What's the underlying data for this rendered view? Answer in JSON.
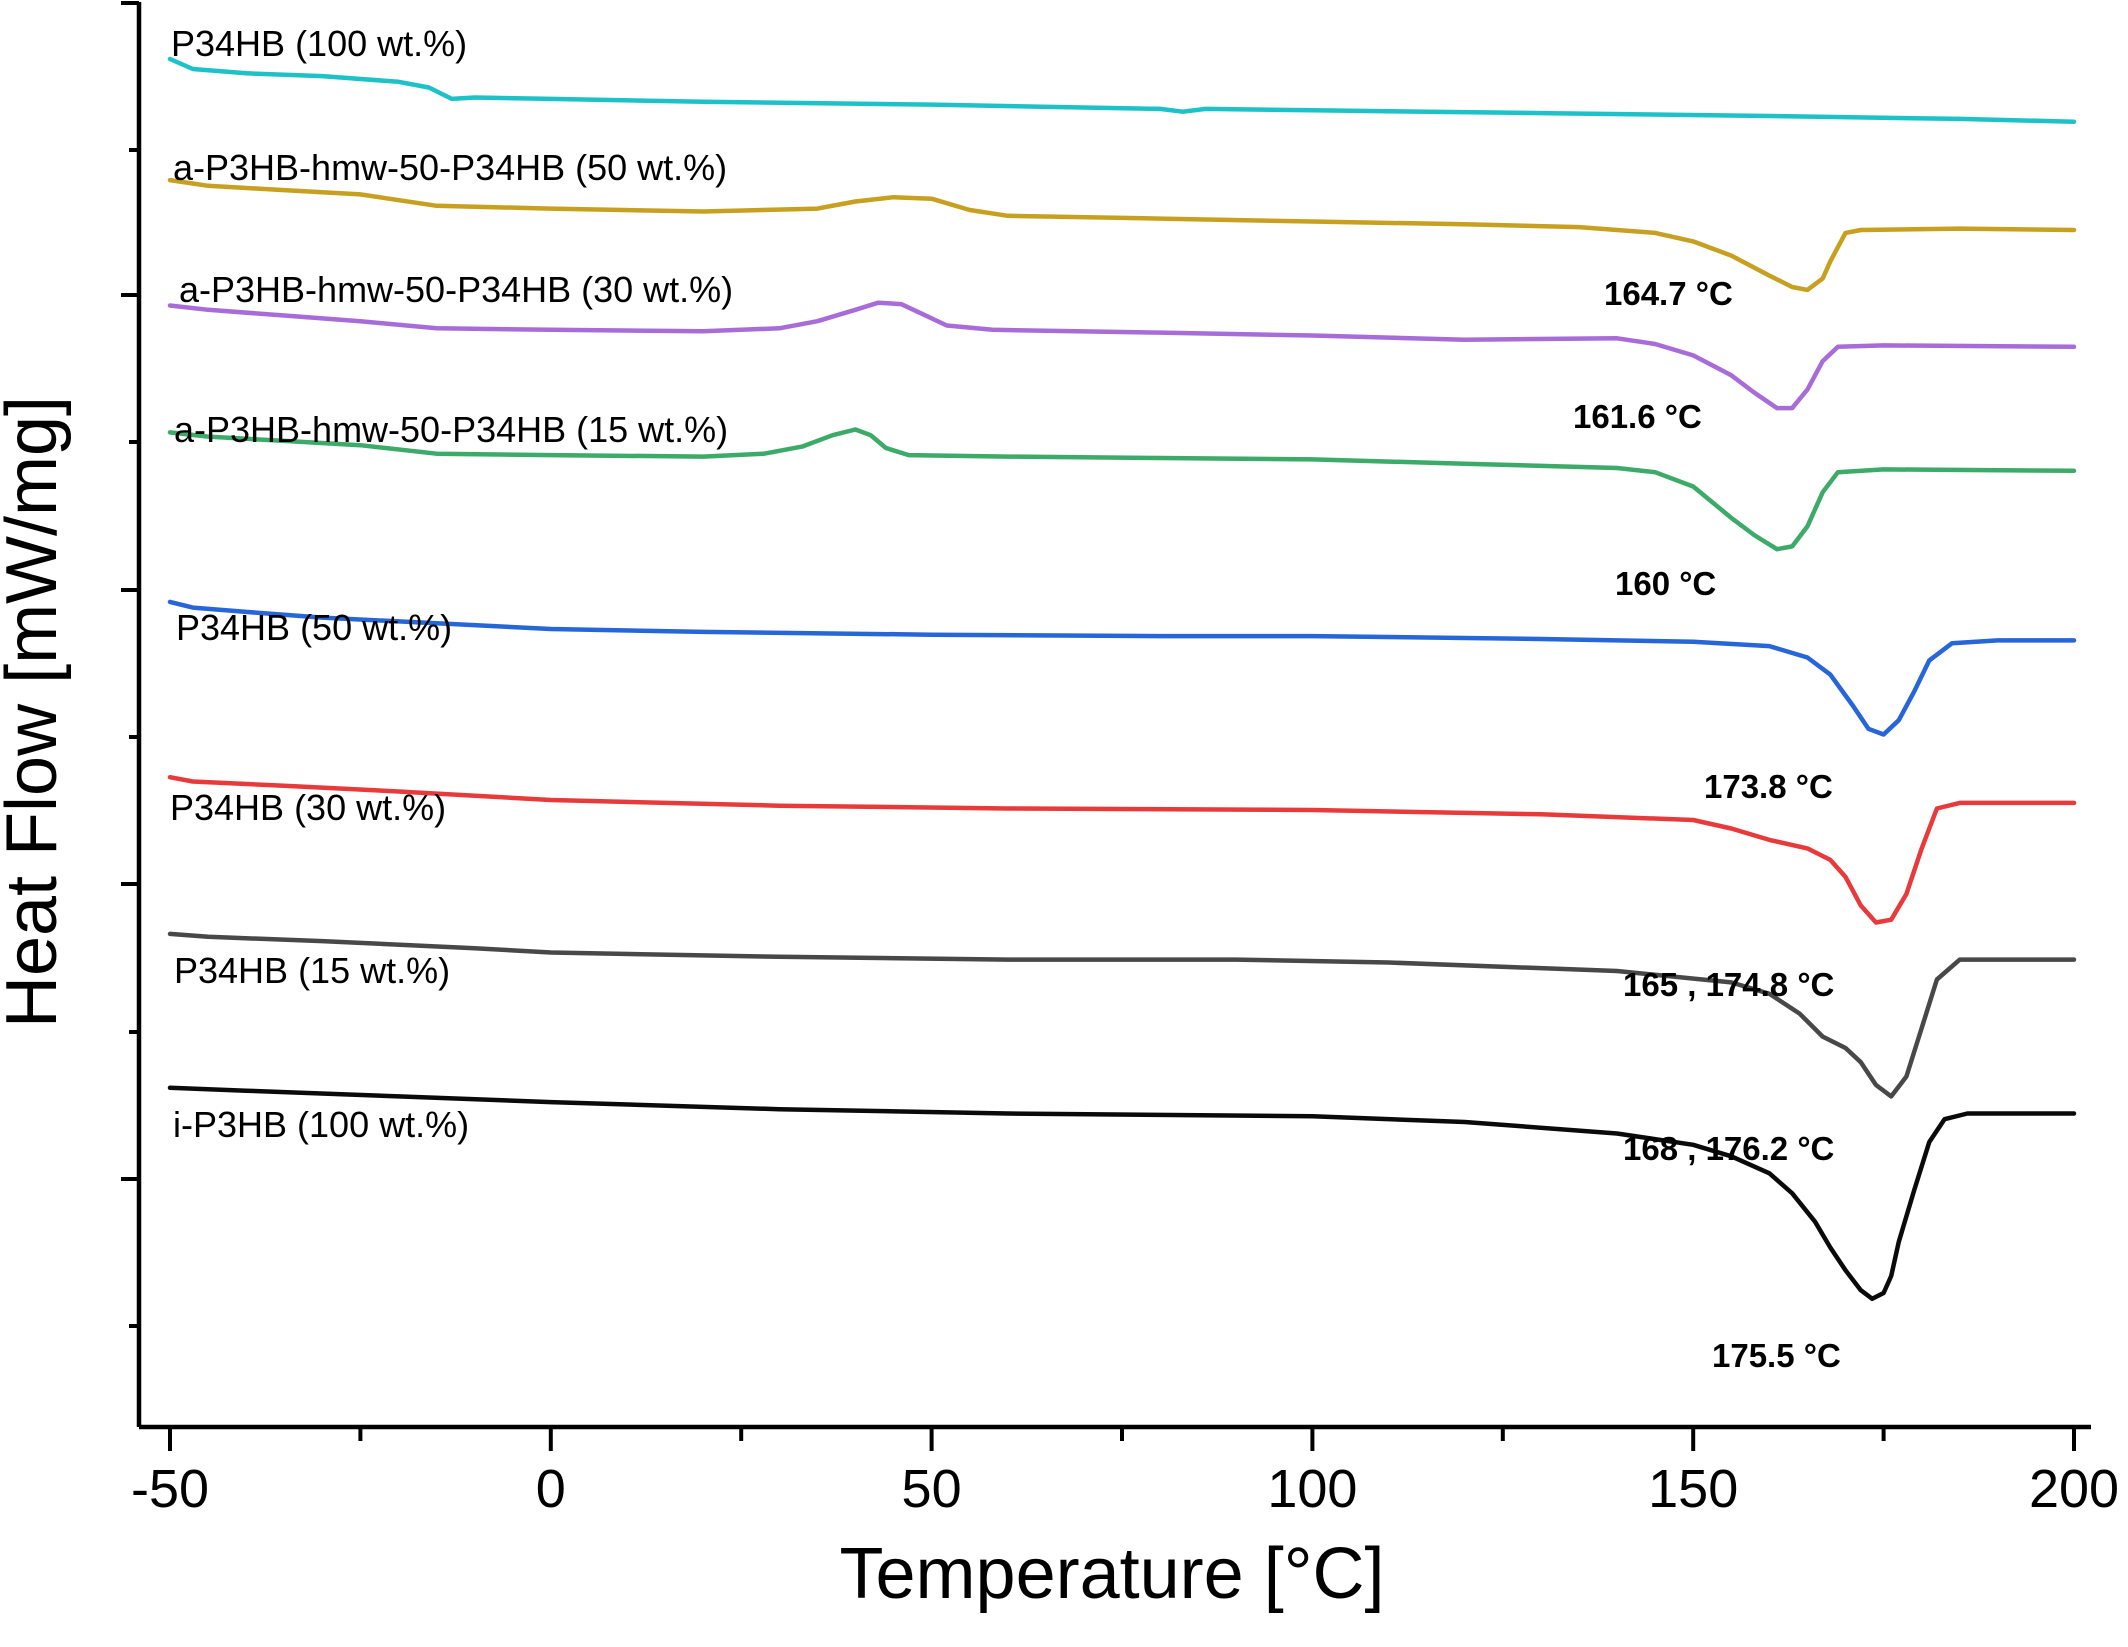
{
  "chart_data": {
    "type": "line",
    "title": "",
    "xlabel": "Temperature [°C]",
    "ylabel": "Heat Flow [mW/mg]",
    "xlim": [
      -50,
      200
    ],
    "ylim": [
      0,
      100
    ],
    "xticks": [
      "-50",
      "0",
      "50",
      "100",
      "150",
      "200"
    ],
    "grid": false,
    "legend": "none",
    "note_y": "curves vertically offset; y values are relative heat flow in arbitrary stacked units (higher = higher on the plot)",
    "series": [
      {
        "name": "P34HB (100 wt.%)",
        "color": "#1CC2C8",
        "points": [
          [
            -50,
            96.0
          ],
          [
            -47,
            95.3
          ],
          [
            -40,
            95.0
          ],
          [
            -30,
            94.8
          ],
          [
            -20,
            94.4
          ],
          [
            -16,
            94.0
          ],
          [
            -13,
            93.2
          ],
          [
            -10,
            93.3
          ],
          [
            0,
            93.2
          ],
          [
            20,
            93.0
          ],
          [
            50,
            92.8
          ],
          [
            80,
            92.5
          ],
          [
            83,
            92.3
          ],
          [
            86,
            92.5
          ],
          [
            100,
            92.4
          ],
          [
            130,
            92.2
          ],
          [
            160,
            92.0
          ],
          [
            185,
            91.8
          ],
          [
            200,
            91.6
          ]
        ]
      },
      {
        "name": "a-P3HB-hmw-50-P34HB (50 wt.%)",
        "color": "#C8A020",
        "peak_label": "164.7 °C",
        "points": [
          [
            -50,
            87.5
          ],
          [
            -45,
            87.1
          ],
          [
            -35,
            86.8
          ],
          [
            -25,
            86.5
          ],
          [
            -15,
            85.7
          ],
          [
            0,
            85.5
          ],
          [
            20,
            85.3
          ],
          [
            35,
            85.5
          ],
          [
            40,
            86.0
          ],
          [
            45,
            86.3
          ],
          [
            50,
            86.2
          ],
          [
            55,
            85.4
          ],
          [
            60,
            85.0
          ],
          [
            80,
            84.8
          ],
          [
            100,
            84.6
          ],
          [
            120,
            84.4
          ],
          [
            135,
            84.2
          ],
          [
            145,
            83.8
          ],
          [
            150,
            83.2
          ],
          [
            155,
            82.2
          ],
          [
            160,
            80.8
          ],
          [
            163,
            80.0
          ],
          [
            165,
            79.8
          ],
          [
            167,
            80.6
          ],
          [
            168,
            81.8
          ],
          [
            170,
            83.8
          ],
          [
            172,
            84.0
          ],
          [
            185,
            84.1
          ],
          [
            200,
            84.0
          ]
        ]
      },
      {
        "name": "a-P3HB-hmw-50-P34HB (30 wt.%)",
        "color": "#A86CD8",
        "peak_label": "161.6 °C",
        "points": [
          [
            -50,
            78.7
          ],
          [
            -45,
            78.4
          ],
          [
            -35,
            78.0
          ],
          [
            -25,
            77.6
          ],
          [
            -15,
            77.1
          ],
          [
            0,
            77.0
          ],
          [
            20,
            76.9
          ],
          [
            30,
            77.1
          ],
          [
            35,
            77.6
          ],
          [
            40,
            78.4
          ],
          [
            43,
            78.9
          ],
          [
            46,
            78.8
          ],
          [
            48,
            78.3
          ],
          [
            52,
            77.3
          ],
          [
            58,
            77.0
          ],
          [
            80,
            76.8
          ],
          [
            100,
            76.6
          ],
          [
            120,
            76.3
          ],
          [
            140,
            76.4
          ],
          [
            145,
            76.0
          ],
          [
            150,
            75.2
          ],
          [
            155,
            73.8
          ],
          [
            158,
            72.6
          ],
          [
            161,
            71.5
          ],
          [
            163,
            71.5
          ],
          [
            165,
            72.8
          ],
          [
            167,
            74.8
          ],
          [
            169,
            75.8
          ],
          [
            175,
            75.9
          ],
          [
            200,
            75.8
          ]
        ]
      },
      {
        "name": "a-P3HB-hmw-50-P34HB (15 wt.%)",
        "color": "#3CAA68",
        "peak_label": "160 °C",
        "points": [
          [
            -50,
            69.8
          ],
          [
            -45,
            69.5
          ],
          [
            -35,
            69.2
          ],
          [
            -25,
            68.9
          ],
          [
            -15,
            68.3
          ],
          [
            0,
            68.2
          ],
          [
            20,
            68.1
          ],
          [
            28,
            68.3
          ],
          [
            33,
            68.8
          ],
          [
            37,
            69.6
          ],
          [
            40,
            70.0
          ],
          [
            42,
            69.6
          ],
          [
            44,
            68.7
          ],
          [
            47,
            68.2
          ],
          [
            60,
            68.1
          ],
          [
            80,
            68.0
          ],
          [
            100,
            67.9
          ],
          [
            120,
            67.6
          ],
          [
            140,
            67.3
          ],
          [
            145,
            67.0
          ],
          [
            150,
            66.0
          ],
          [
            155,
            63.8
          ],
          [
            158,
            62.6
          ],
          [
            161,
            61.6
          ],
          [
            163,
            61.8
          ],
          [
            165,
            63.2
          ],
          [
            167,
            65.6
          ],
          [
            169,
            67.0
          ],
          [
            175,
            67.2
          ],
          [
            200,
            67.1
          ]
        ]
      },
      {
        "name": "P34HB (50 wt.%)",
        "color": "#2666D8",
        "peak_label": "173.8 °C",
        "points": [
          [
            -50,
            57.9
          ],
          [
            -47,
            57.5
          ],
          [
            -40,
            57.2
          ],
          [
            -30,
            56.8
          ],
          [
            -15,
            56.4
          ],
          [
            0,
            56.0
          ],
          [
            20,
            55.8
          ],
          [
            50,
            55.6
          ],
          [
            80,
            55.5
          ],
          [
            100,
            55.5
          ],
          [
            130,
            55.3
          ],
          [
            150,
            55.1
          ],
          [
            160,
            54.8
          ],
          [
            165,
            54.0
          ],
          [
            168,
            52.8
          ],
          [
            171,
            50.6
          ],
          [
            173,
            49.0
          ],
          [
            175,
            48.6
          ],
          [
            177,
            49.6
          ],
          [
            179,
            51.6
          ],
          [
            181,
            53.8
          ],
          [
            184,
            55.0
          ],
          [
            190,
            55.2
          ],
          [
            200,
            55.2
          ]
        ]
      },
      {
        "name": "P34HB (30 wt.%)",
        "color": "#E83A3A",
        "peak_label": "165 , 174.8 °C",
        "points": [
          [
            -50,
            45.6
          ],
          [
            -47,
            45.3
          ],
          [
            -35,
            45.0
          ],
          [
            -20,
            44.6
          ],
          [
            0,
            44.0
          ],
          [
            30,
            43.6
          ],
          [
            60,
            43.4
          ],
          [
            100,
            43.3
          ],
          [
            130,
            43.0
          ],
          [
            150,
            42.6
          ],
          [
            155,
            42.0
          ],
          [
            160,
            41.2
          ],
          [
            165,
            40.6
          ],
          [
            168,
            39.8
          ],
          [
            170,
            38.6
          ],
          [
            172,
            36.6
          ],
          [
            174,
            35.4
          ],
          [
            176,
            35.6
          ],
          [
            178,
            37.4
          ],
          [
            180,
            40.6
          ],
          [
            182,
            43.4
          ],
          [
            185,
            43.8
          ],
          [
            200,
            43.8
          ]
        ]
      },
      {
        "name": "P34HB (15 wt.%)",
        "color": "#484848",
        "peak_label": "168 , 176.2 °C",
        "points": [
          [
            -50,
            34.6
          ],
          [
            -45,
            34.4
          ],
          [
            -30,
            34.1
          ],
          [
            -10,
            33.6
          ],
          [
            0,
            33.3
          ],
          [
            30,
            33.0
          ],
          [
            60,
            32.8
          ],
          [
            90,
            32.8
          ],
          [
            110,
            32.6
          ],
          [
            140,
            32.0
          ],
          [
            155,
            31.2
          ],
          [
            160,
            30.4
          ],
          [
            164,
            29.0
          ],
          [
            167,
            27.4
          ],
          [
            170,
            26.6
          ],
          [
            172,
            25.6
          ],
          [
            174,
            24.0
          ],
          [
            176,
            23.2
          ],
          [
            178,
            24.6
          ],
          [
            180,
            28.0
          ],
          [
            182,
            31.4
          ],
          [
            185,
            32.8
          ],
          [
            200,
            32.8
          ]
        ]
      },
      {
        "name": "i-P3HB (100 wt.%)",
        "color": "#0A0A0A",
        "peak_label": "175.5 °C",
        "points": [
          [
            -50,
            23.8
          ],
          [
            -40,
            23.6
          ],
          [
            -20,
            23.2
          ],
          [
            0,
            22.8
          ],
          [
            30,
            22.3
          ],
          [
            60,
            22.0
          ],
          [
            100,
            21.8
          ],
          [
            120,
            21.4
          ],
          [
            140,
            20.6
          ],
          [
            150,
            19.8
          ],
          [
            155,
            19.0
          ],
          [
            160,
            17.8
          ],
          [
            163,
            16.4
          ],
          [
            166,
            14.4
          ],
          [
            168,
            12.6
          ],
          [
            170,
            11.0
          ],
          [
            172,
            9.6
          ],
          [
            173.5,
            9.0
          ],
          [
            175,
            9.4
          ],
          [
            176,
            10.6
          ],
          [
            177,
            13.0
          ],
          [
            179,
            16.6
          ],
          [
            181,
            20.0
          ],
          [
            183,
            21.6
          ],
          [
            186,
            22.0
          ],
          [
            200,
            22.0
          ]
        ]
      }
    ]
  }
}
